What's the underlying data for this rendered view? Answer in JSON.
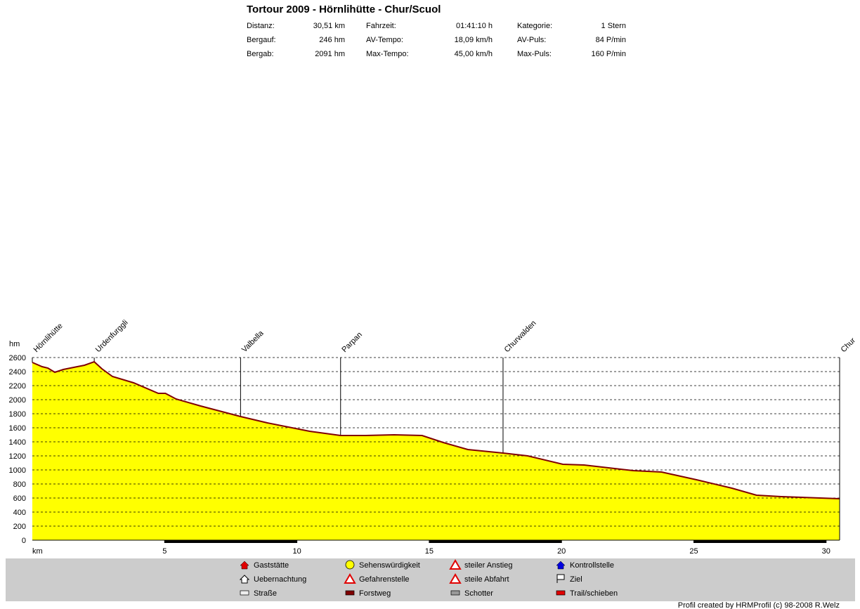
{
  "title": "Tortour 2009 - Hörnlihütte - Chur/Scuol",
  "stats": [
    [
      {
        "label": "Distanz:",
        "value": "30,51 km"
      },
      {
        "label": "Fahrzeit:",
        "value": "01:41:10 h"
      },
      {
        "label": "Kategorie:",
        "value": "1 Stern"
      }
    ],
    [
      {
        "label": "Bergauf:",
        "value": "246 hm"
      },
      {
        "label": "AV-Tempo:",
        "value": "18,09 km/h"
      },
      {
        "label": "AV-Puls:",
        "value": "84 P/min"
      }
    ],
    [
      {
        "label": "Bergab:",
        "value": "2091 hm"
      },
      {
        "label": "Max-Tempo:",
        "value": "45,00 km/h"
      },
      {
        "label": "Max-Puls:",
        "value": "160 P/min"
      }
    ]
  ],
  "chart_data": {
    "type": "area",
    "x_label": "km",
    "y_label": "hm",
    "x": [
      0,
      0.37,
      0.59,
      0.85,
      1.17,
      1.7,
      1.97,
      2.34,
      2.63,
      3.03,
      3.83,
      4.76,
      5.03,
      5.43,
      6.36,
      7.87,
      8.88,
      10.48,
      11.65,
      12.6,
      13.67,
      14.73,
      15.53,
      16.46,
      17.79,
      18.72,
      20.05,
      20.85,
      22.71,
      23.78,
      25.1,
      26.44,
      27.37,
      28.3,
      30.51
    ],
    "values": [
      2530,
      2470,
      2450,
      2390,
      2430,
      2470,
      2490,
      2540,
      2440,
      2330,
      2240,
      2090,
      2090,
      2010,
      1910,
      1760,
      1670,
      1550,
      1490,
      1490,
      1500,
      1490,
      1390,
      1290,
      1240,
      1200,
      1080,
      1070,
      990,
      970,
      860,
      740,
      640,
      620,
      590
    ],
    "fill_color": "#ffff00",
    "line_color": "#800000",
    "xlim": [
      0,
      30.51
    ],
    "ylim": [
      0,
      2600
    ],
    "xticks": [
      5,
      10,
      15,
      20,
      25,
      30
    ],
    "yticks": [
      0,
      200,
      400,
      600,
      800,
      1000,
      1200,
      1400,
      1600,
      1800,
      2000,
      2200,
      2400,
      2600
    ],
    "grid": true,
    "waypoints": [
      {
        "name": "Hörnlihütte",
        "x": 0
      },
      {
        "name": "Urdenfurggli",
        "x": 2.34
      },
      {
        "name": "Valbella",
        "x": 7.87
      },
      {
        "name": "Parpan",
        "x": 11.65
      },
      {
        "name": "Churwalden",
        "x": 17.79
      },
      {
        "name": "Chur",
        "x": 30.51
      }
    ]
  },
  "legend_items": [
    "Gaststätte",
    "Sehenswürdigkeit",
    "steiler Anstieg",
    "Kontrollstelle",
    "Uebernachtung",
    "Gefahrenstelle",
    "steile Abfahrt",
    "Ziel",
    "Straße",
    "Forstweg",
    "Schotter",
    "Trail/schieben"
  ],
  "footer": "Profil created by HRMProfil (c) 98-2008 R.Welz"
}
